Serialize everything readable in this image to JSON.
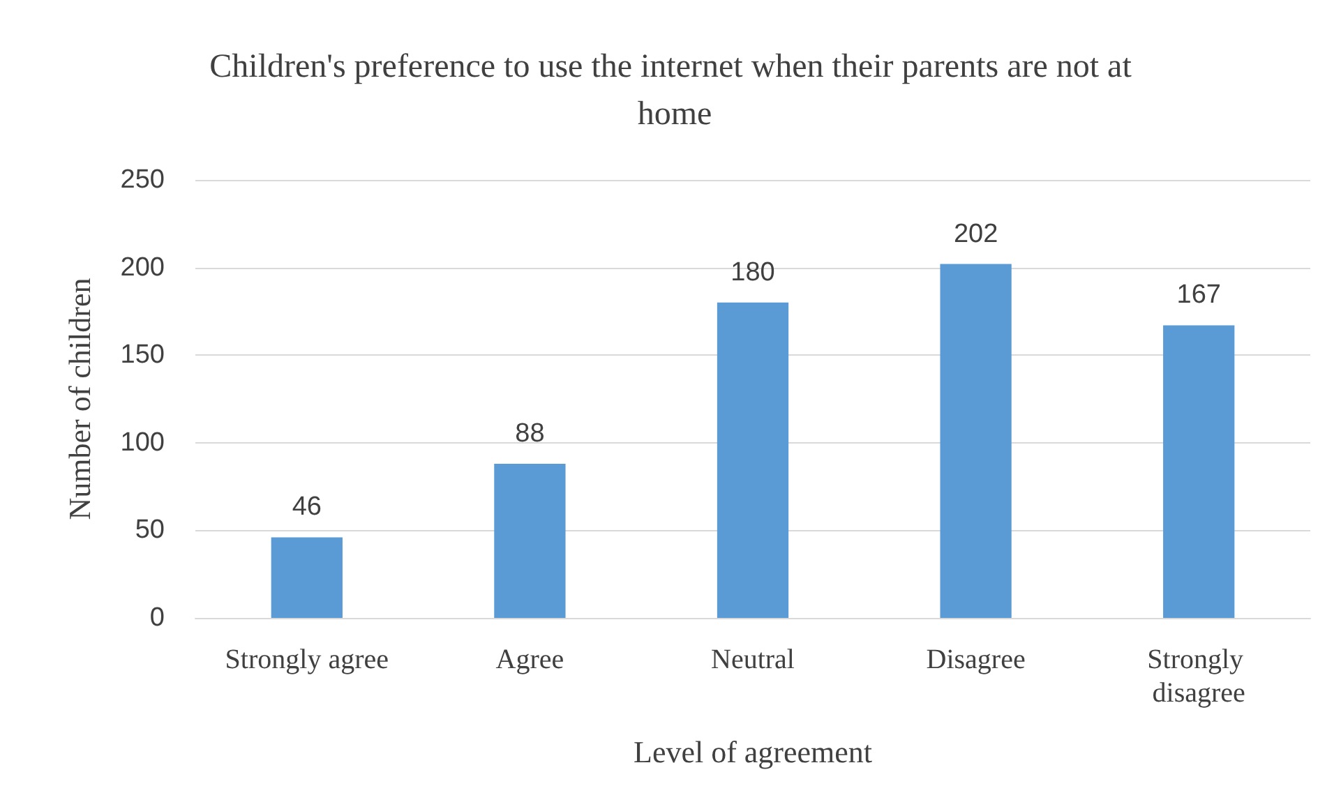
{
  "chart_data": {
    "type": "bar",
    "title": "Children's preference to use the internet when their parents are not at home",
    "xlabel": "Level of agreement",
    "ylabel": "Number of children",
    "categories": [
      "Strongly agree",
      "Agree",
      "Neutral",
      "Disagree",
      "Strongly disagree"
    ],
    "values": [
      46,
      88,
      180,
      202,
      167
    ],
    "color": "#5b9bd5",
    "ylim": [
      0,
      250
    ],
    "yticks": [
      0,
      50,
      100,
      150,
      200,
      250
    ],
    "grid": "y",
    "data_labels": true
  }
}
